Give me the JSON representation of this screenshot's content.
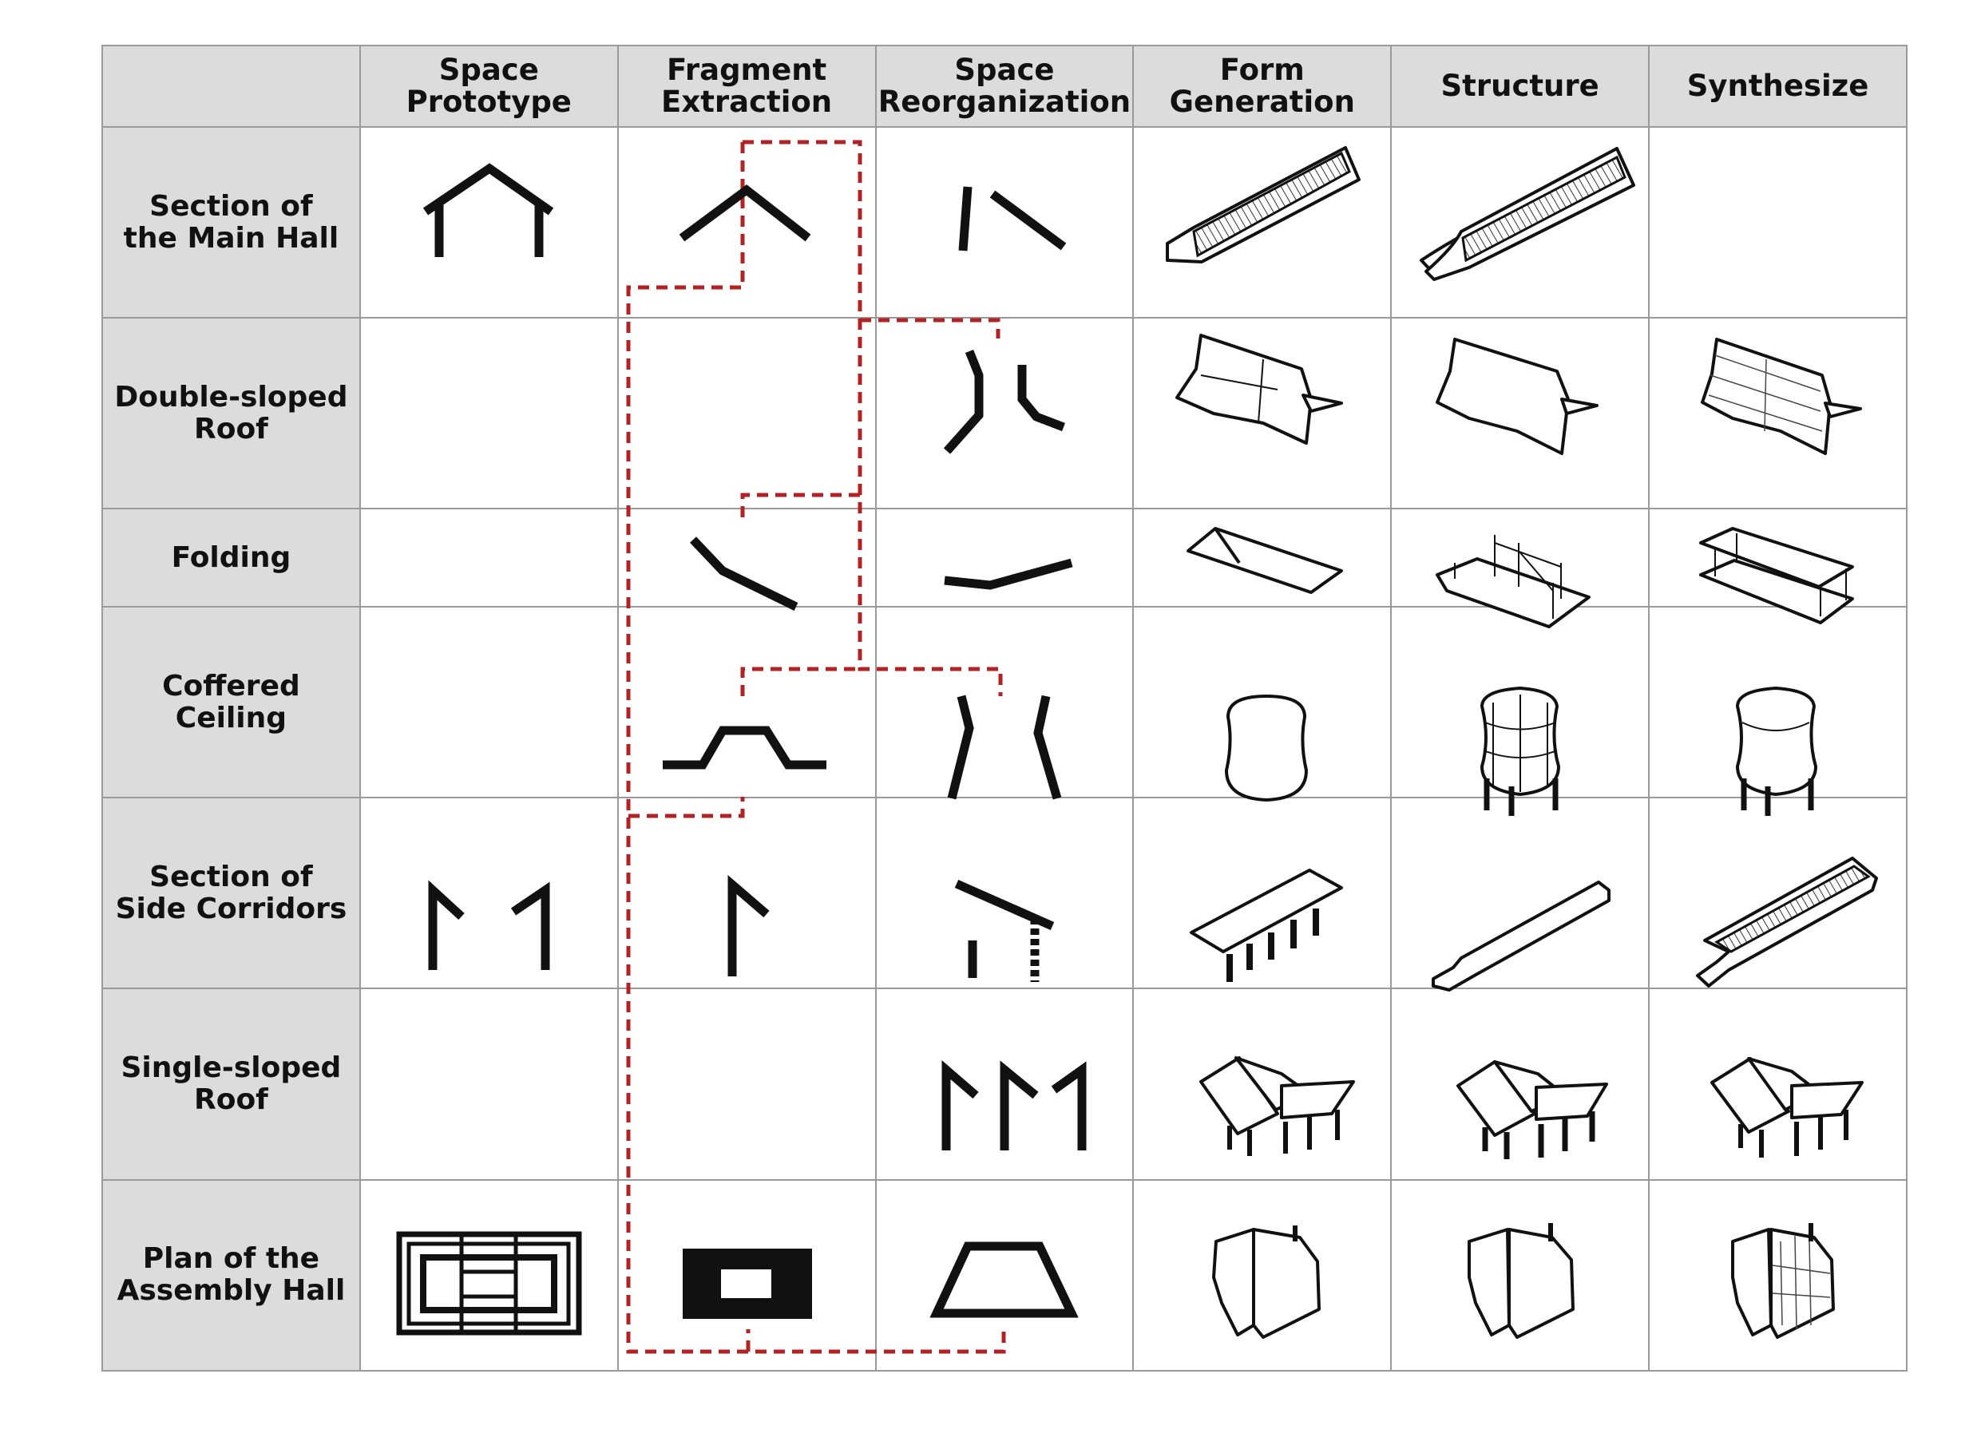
{
  "columns": [
    "",
    "Space\nPrototype",
    "Fragment\nExtraction",
    "Space\nReorganization",
    "Form\nGeneration",
    "Structure",
    "Synthesize"
  ],
  "rows": [
    {
      "label": "Section of\nthe Main Hall"
    },
    {
      "label": "Double-sloped\nRoof"
    },
    {
      "label": "Folding"
    },
    {
      "label": "Coffered Ceiling"
    },
    {
      "label": "Section of\nSide Corridors"
    },
    {
      "label": "Single-sloped\nRoof"
    },
    {
      "label": "Plan of the\nAssembly Hall"
    }
  ],
  "colors": {
    "header_bg": "#dcdcdc",
    "grid_line": "#9a9a9a",
    "connector": "#b22222",
    "ink": "#111111"
  }
}
